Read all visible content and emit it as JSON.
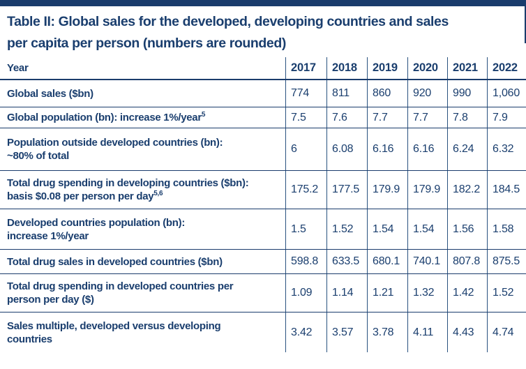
{
  "colors": {
    "text_navy": "#1a3e6e",
    "bar_navy": "#1a3c6c",
    "grid_horizontal": "#1a3c6c",
    "grid_vertical": "#29527f",
    "background": "#ffffff"
  },
  "table": {
    "title_lines": [
      "Table II: Global sales for the developed, developing countries and sales",
      "per capita per person (numbers are rounded)"
    ],
    "header": {
      "label": "Year",
      "years": [
        "2017",
        "2018",
        "2019",
        "2020",
        "2021",
        "2022"
      ]
    },
    "rows": [
      {
        "label_lines": [
          {
            "text": "Global sales ($bn)"
          }
        ],
        "values": [
          "774",
          "811",
          "860",
          "920",
          "990",
          "1,060"
        ]
      },
      {
        "label_lines": [
          {
            "text": "Global population (bn): increase 1%/year",
            "sup": "5"
          }
        ],
        "values": [
          "7.5",
          "7.6",
          "7.7",
          "7.7",
          "7.8",
          "7.9"
        ]
      },
      {
        "label_lines": [
          {
            "text": "Population outside developed countries (bn):"
          },
          {
            "text": "~80% of total"
          }
        ],
        "values": [
          "6",
          "6.08",
          "6.16",
          "6.16",
          "6.24",
          "6.32"
        ]
      },
      {
        "label_lines": [
          {
            "text": "Total drug spending in developing countries ($bn):"
          },
          {
            "text": "basis $0.08 per person per day",
            "sup": "5,6"
          }
        ],
        "values": [
          "175.2",
          "177.5",
          "179.9",
          "179.9",
          "182.2",
          "184.5"
        ]
      },
      {
        "label_lines": [
          {
            "text": "Developed countries population (bn):"
          },
          {
            "text": "increase 1%/year"
          }
        ],
        "values": [
          "1.5",
          "1.52",
          "1.54",
          "1.54",
          "1.56",
          "1.58"
        ]
      },
      {
        "label_lines": [
          {
            "text": "Total drug sales in developed countries ($bn)"
          }
        ],
        "values": [
          "598.8",
          "633.5",
          "680.1",
          "740.1",
          "807.8",
          "875.5"
        ]
      },
      {
        "label_lines": [
          {
            "text": "Total drug spending in developed countries per"
          },
          {
            "text": "person per day ($)"
          }
        ],
        "values": [
          "1.09",
          "1.14",
          "1.21",
          "1.32",
          "1.42",
          "1.52"
        ]
      },
      {
        "label_lines": [
          {
            "text": "Sales multiple, developed versus developing"
          },
          {
            "text": "countries"
          }
        ],
        "values": [
          "3.42",
          "3.57",
          "3.78",
          "4.11",
          "4.43",
          "4.74"
        ]
      }
    ]
  }
}
